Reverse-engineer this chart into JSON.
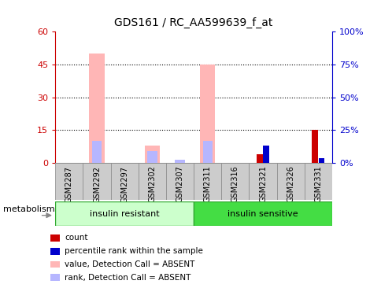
{
  "title": "GDS161 / RC_AA599639_f_at",
  "samples": [
    "GSM2287",
    "GSM2292",
    "GSM2297",
    "GSM2302",
    "GSM2307",
    "GSM2311",
    "GSM2316",
    "GSM2321",
    "GSM2326",
    "GSM2331"
  ],
  "value_absent": [
    0,
    50,
    0,
    8,
    0,
    45,
    0,
    0,
    0,
    0
  ],
  "rank_absent": [
    0,
    10,
    0,
    5.5,
    1.5,
    10,
    0,
    0,
    0,
    0
  ],
  "count": [
    0,
    0,
    0,
    0,
    0,
    0,
    0,
    4,
    0,
    15
  ],
  "percentile_rank": [
    0,
    0,
    0,
    0,
    0,
    0,
    0,
    8,
    0,
    2
  ],
  "ylim_left": [
    0,
    60
  ],
  "ylim_right": [
    0,
    100
  ],
  "yticks_left": [
    0,
    15,
    30,
    45,
    60
  ],
  "yticks_right": [
    0,
    25,
    50,
    75,
    100
  ],
  "ytick_labels_left": [
    "0",
    "15",
    "30",
    "45",
    "60"
  ],
  "ytick_labels_right": [
    "0%",
    "25%",
    "50%",
    "75%",
    "100%"
  ],
  "color_value_absent": "#ffb6b6",
  "color_rank_absent": "#b6b6ff",
  "color_count": "#cc0000",
  "color_percentile": "#0000cc",
  "color_left_axis": "#cc0000",
  "color_right_axis": "#0000cc",
  "group_insulin_resistant": {
    "label": "insulin resistant",
    "color": "#ccffcc",
    "n": 5
  },
  "group_insulin_sensitive": {
    "label": "insulin sensitive",
    "color": "#44dd44",
    "n": 5
  },
  "metabolism_label": "metabolism",
  "legend_items": [
    {
      "color": "#cc0000",
      "label": "count"
    },
    {
      "color": "#0000cc",
      "label": "percentile rank within the sample"
    },
    {
      "color": "#ffb6b6",
      "label": "value, Detection Call = ABSENT"
    },
    {
      "color": "#b6b6ff",
      "label": "rank, Detection Call = ABSENT"
    }
  ],
  "bg_color": "#ffffff",
  "grid_color": "#000000",
  "sample_cell_color": "#cccccc",
  "sample_cell_edge": "#888888"
}
